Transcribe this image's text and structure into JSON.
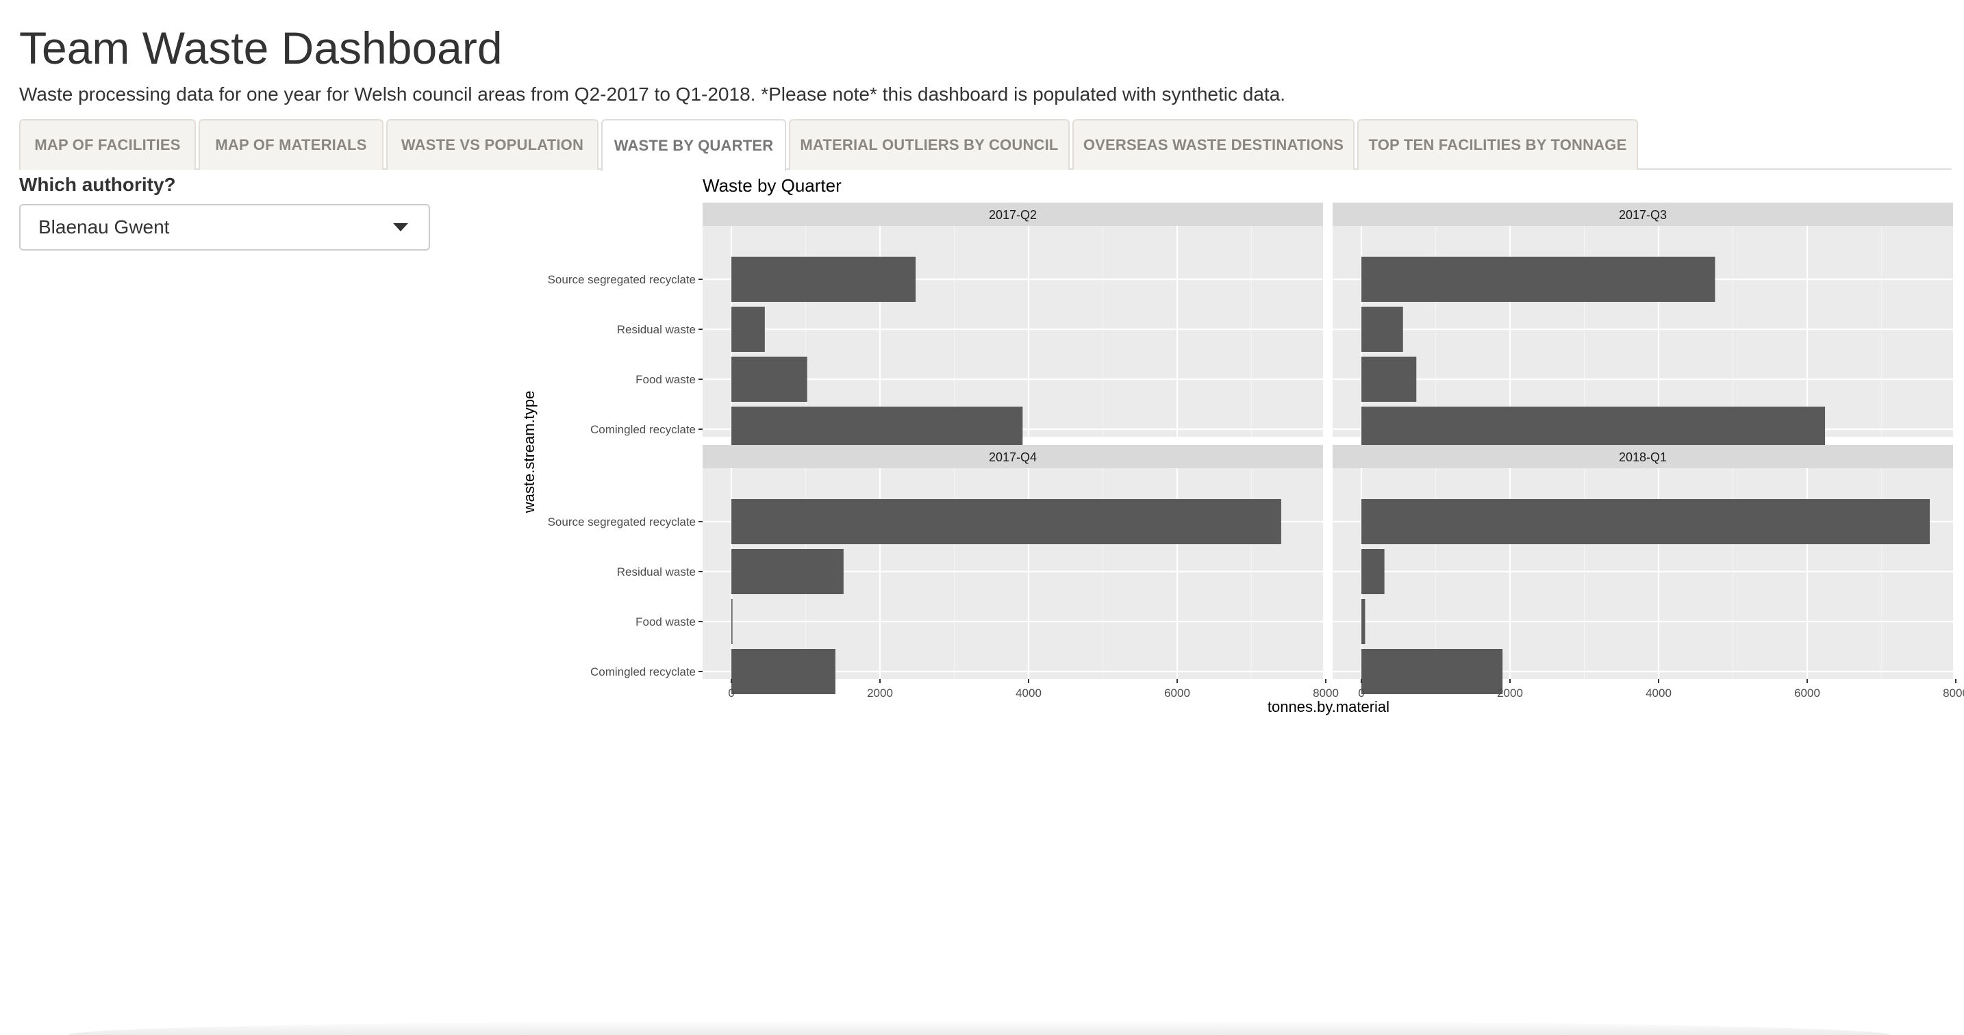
{
  "header": {
    "title": "Team Waste Dashboard",
    "subtitle": "Waste processing data for one year for Welsh council areas from Q2-2017 to Q1-2018. *Please note* this dashboard is populated with synthetic data."
  },
  "tabs": [
    {
      "label": "MAP OF FACILITIES",
      "active": false
    },
    {
      "label": "MAP OF MATERIALS",
      "active": false
    },
    {
      "label": "WASTE VS POPULATION",
      "active": false
    },
    {
      "label": "WASTE BY QUARTER",
      "active": true
    },
    {
      "label": "MATERIAL OUTLIERS BY COUNCIL",
      "active": false
    },
    {
      "label": "OVERSEAS WASTE DESTINATIONS",
      "active": false
    },
    {
      "label": "TOP TEN FACILITIES BY TONNAGE",
      "active": false
    }
  ],
  "sidebar": {
    "input_label": "Which authority?",
    "authority_selected": "Blaenau Gwent",
    "dropdown_icon": "caret-down-icon"
  },
  "chart_data": {
    "type": "bar",
    "orientation": "horizontal",
    "title": "Waste by Quarter",
    "xlabel": "tonnes.by.material",
    "ylabel": "waste.stream.type",
    "xlim": [
      0,
      8000
    ],
    "xticks": [
      "0",
      "2000",
      "4000",
      "6000",
      "8000"
    ],
    "categories": [
      "Source segregated recyclate",
      "Residual waste",
      "Food waste",
      "Comingled recyclate"
    ],
    "grid": true,
    "bar_color": "#595959",
    "panel_background": "#ebebeb",
    "strip_background": "#d9d9d9",
    "facets": [
      {
        "name": "2017-Q2",
        "values": [
          2480,
          450,
          1020,
          3920
        ]
      },
      {
        "name": "2017-Q3",
        "values": [
          4760,
          560,
          740,
          6240
        ]
      },
      {
        "name": "2017-Q4",
        "values": [
          7400,
          1510,
          15,
          1400
        ]
      },
      {
        "name": "2018-Q1",
        "values": [
          7650,
          310,
          50,
          1900
        ]
      }
    ]
  }
}
